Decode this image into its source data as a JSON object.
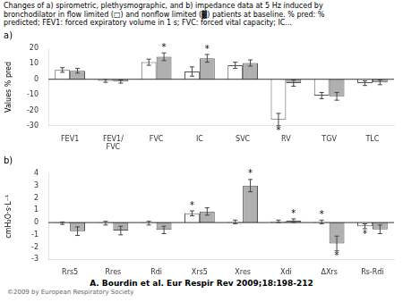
{
  "chart_data": [
    {
      "type": "bar",
      "title": "Changes of a) spirometric, plethysmographic, and b) impedance data at 5 Hz induced by\nbronchodilator in flow limited (□) and nonflow limited (▓) patients at baseline. % pred: %\npredicted; FEV1: forced expiratory volume in 1 s; FVC: forced vital capacity; IC...",
      "subtitle": "a)",
      "categories": [
        "FEV1",
        "FEV1/\nFVC",
        "FVC",
        "IC",
        "SVC",
        "RV",
        "TGV",
        "TLC"
      ],
      "series": [
        {
          "name": "flow limited",
          "color": "white",
          "values": [
            6.0,
            -1.0,
            11.0,
            5.0,
            9.0,
            -26.0,
            -10.5,
            -2.5
          ],
          "error": [
            1.5,
            1.0,
            2.0,
            3.0,
            2.0,
            4.0,
            2.0,
            1.5
          ],
          "annotations": [
            null,
            null,
            null,
            null,
            null,
            "*",
            null,
            null
          ]
        },
        {
          "name": "nonflow limited",
          "color": "#b0b0b0",
          "values": [
            5.5,
            -1.5,
            14.5,
            13.5,
            10.5,
            -2.5,
            -11.0,
            -2.0
          ],
          "error": [
            1.5,
            1.0,
            2.5,
            2.5,
            2.0,
            2.0,
            2.5,
            1.5
          ],
          "annotations": [
            null,
            null,
            "*",
            "*",
            null,
            null,
            null,
            null
          ]
        }
      ],
      "ylabel": "Values % pred",
      "ylim": [
        -30,
        20
      ],
      "yticks": [
        -30,
        -20,
        -10,
        0,
        10,
        20
      ],
      "grid": false,
      "legend": false
    },
    {
      "type": "bar",
      "subtitle": "b)",
      "categories": [
        "Rrs5",
        "Rres",
        "Rdi",
        "Xrs5",
        "Xres",
        "Xdi",
        "ΔXrs",
        "Rs-Rdi"
      ],
      "series": [
        {
          "name": "flow limited",
          "color": "white",
          "values": [
            -0.05,
            -0.05,
            -0.05,
            0.75,
            0.05,
            0.1,
            0.05,
            -0.3
          ],
          "error": [
            0.1,
            0.15,
            0.15,
            0.2,
            0.15,
            0.1,
            0.15,
            0.2
          ],
          "annotations": [
            null,
            null,
            null,
            "*",
            null,
            null,
            "*",
            "*"
          ]
        },
        {
          "name": "nonflow limited",
          "color": "#b0b0b0",
          "values": [
            -0.7,
            -0.65,
            -0.6,
            0.9,
            3.0,
            0.15,
            -1.7,
            -0.55
          ],
          "error": [
            0.35,
            0.35,
            0.3,
            0.3,
            0.5,
            0.15,
            0.6,
            0.35
          ],
          "annotations": [
            null,
            null,
            null,
            null,
            "*",
            "*",
            "*",
            null
          ]
        }
      ],
      "ylabel": "cmH₂O·s·L⁻¹",
      "ylim": [
        -3,
        4
      ],
      "yticks": [
        -3,
        -2,
        -1,
        0,
        1,
        2,
        3,
        4
      ],
      "grid": false,
      "legend": false,
      "annotations": [
        "A. Bourdin et al. Eur Respir Rev 2009;18:198-212",
        "©2009 by European Respiratory Society"
      ]
    }
  ]
}
